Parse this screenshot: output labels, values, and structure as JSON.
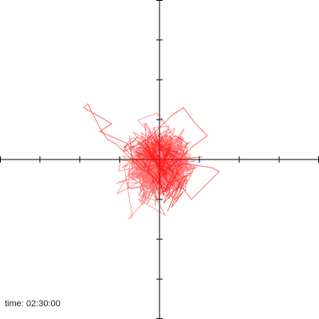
{
  "status": {
    "time_label": "time:",
    "time_value": "02:30:00"
  },
  "colors": {
    "trace": "#ff0000",
    "axes": "#000000",
    "background": "#ffffff"
  },
  "chart_data": {
    "type": "line",
    "title": "",
    "xlabel": "",
    "ylabel": "",
    "xlim": [
      -4,
      4
    ],
    "ylim": [
      -4,
      4
    ],
    "x_ticks": [
      -4,
      -3,
      -2,
      -1,
      1,
      2,
      3,
      4
    ],
    "y_ticks": [
      -4,
      -3,
      -2,
      -1,
      1,
      2,
      3,
      4
    ],
    "grid": false,
    "series": [
      {
        "name": "",
        "x": [
          -0.3,
          0.1,
          -0.4,
          0.6,
          -0.2,
          0.3,
          0.05,
          -0.5,
          0.4,
          -0.1,
          0.2,
          -0.6,
          0.5,
          0.0,
          -0.3,
          0.35,
          -0.15,
          0.55,
          0.1,
          -0.45,
          0.25,
          -0.05,
          0.45,
          -0.35,
          0.15,
          -0.25,
          0.6,
          -0.1,
          0.3,
          -0.55,
          0.2,
          0.05,
          -0.4,
          0.5,
          -0.2,
          0.1,
          0.35,
          -0.3,
          0.25,
          0.7,
          0.4,
          0.6,
          0.3,
          0.55,
          0.2,
          0.45,
          0.1,
          0.35,
          0.0,
          -0.2,
          -0.5,
          -0.8,
          -1.1,
          -1.3,
          -1.5,
          -1.8,
          -1.9,
          -1.2,
          -1.5,
          -0.8,
          -0.9,
          -0.3,
          0.0,
          0.3,
          0.6,
          0.9,
          1.2,
          0.8,
          0.5,
          0.2,
          0.6,
          1.3,
          1.5,
          1.1,
          0.8,
          0.5,
          0.3,
          0.1,
          -0.2,
          0.4,
          0.7,
          0.6,
          0.4,
          0.2,
          -0.1,
          -0.4,
          -0.7,
          -0.9,
          -0.6,
          -0.3,
          0.0,
          0.25,
          0.05,
          -0.2,
          0.15,
          -0.35,
          0.3,
          -0.1,
          0.2,
          -0.4,
          0.1
        ],
        "y": [
          0.2,
          -0.3,
          0.5,
          0.1,
          -0.6,
          0.4,
          -0.2,
          0.3,
          -0.5,
          0.6,
          -0.1,
          0.2,
          -0.4,
          0.7,
          -0.3,
          0.1,
          0.5,
          -0.2,
          -0.8,
          0.0,
          0.4,
          -0.6,
          0.2,
          0.3,
          -0.4,
          0.6,
          -0.1,
          -0.5,
          0.3,
          0.1,
          -0.7,
          0.5,
          -0.2,
          0.0,
          0.4,
          -0.9,
          -0.3,
          0.2,
          -0.6,
          -0.4,
          -1.0,
          -0.8,
          -1.2,
          -0.5,
          -1.3,
          -0.7,
          -1.1,
          -0.6,
          -0.9,
          -0.4,
          -0.2,
          0.1,
          0.4,
          0.5,
          0.8,
          1.4,
          1.3,
          0.9,
          0.7,
          0.4,
          0.2,
          0.5,
          0.8,
          1.1,
          1.3,
          0.9,
          0.6,
          0.3,
          0.0,
          -0.2,
          -0.1,
          -0.2,
          -0.3,
          -0.7,
          -1.0,
          -0.6,
          -0.3,
          -0.1,
          0.1,
          0.6,
          0.4,
          0.2,
          -0.4,
          -0.8,
          -0.5,
          -0.2,
          0.1,
          0.3,
          0.5,
          0.2,
          -0.1,
          0.3,
          -0.3,
          0.2,
          -0.5,
          0.4,
          -0.2,
          0.1,
          -0.4,
          0.3,
          0.0
        ]
      }
    ]
  }
}
